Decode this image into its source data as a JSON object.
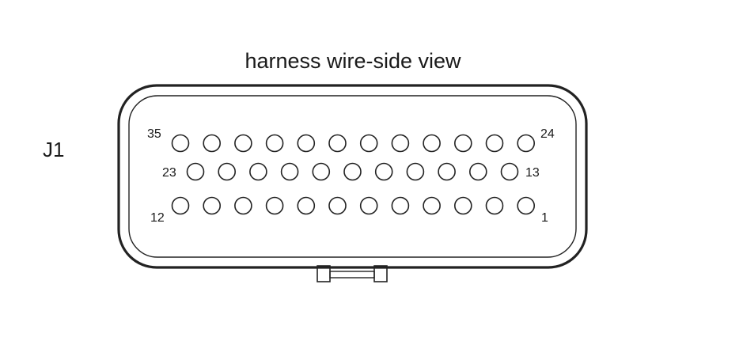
{
  "diagram": {
    "title": "harness wire-side view",
    "connector_label": "J1",
    "rows": [
      {
        "name": "top",
        "start_label": "35",
        "end_label": "24",
        "pin_count": 12
      },
      {
        "name": "middle",
        "start_label": "23",
        "end_label": "13",
        "pin_count": 11
      },
      {
        "name": "bottom",
        "start_label": "12",
        "end_label": "1",
        "pin_count": 12
      }
    ],
    "colors": {
      "line": "#222222",
      "background": "#ffffff",
      "text": "#1a1a1a"
    }
  }
}
